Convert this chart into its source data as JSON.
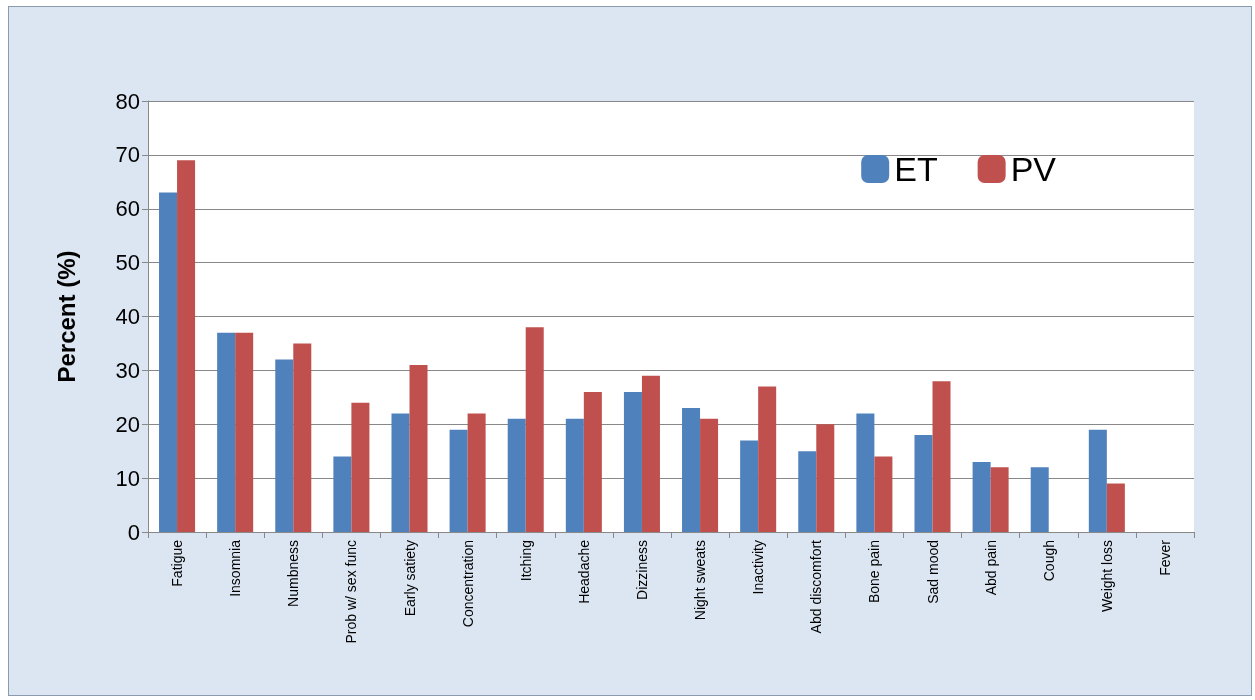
{
  "chart_data": {
    "type": "bar",
    "ylabel": "Percent (%)",
    "categories": [
      "Fatigue",
      "Insomnia",
      "Numbness",
      "Prob w/ sex func",
      "Early satiety",
      "Concentration",
      "Itching",
      "Headache",
      "Dizziness",
      "Night sweats",
      "Inactivity",
      "Abd discomfort",
      "Bone pain",
      "Sad mood",
      "Abd pain",
      "Cough",
      "Weight loss",
      "Fever"
    ],
    "series": [
      {
        "name": "ET",
        "color": "#4f81bd",
        "values": [
          63,
          37,
          32,
          14,
          22,
          19,
          21,
          21,
          26,
          23,
          17,
          15,
          22,
          18,
          13,
          12,
          19,
          0
        ]
      },
      {
        "name": "PV",
        "color": "#c0504d",
        "values": [
          69,
          37,
          35,
          24,
          31,
          22,
          38,
          26,
          29,
          21,
          27,
          20,
          14,
          28,
          12,
          0,
          9,
          0
        ]
      }
    ],
    "ylim": [
      0,
      80
    ],
    "yticks": [
      0,
      10,
      20,
      30,
      40,
      50,
      60,
      70,
      80
    ],
    "grid": "y",
    "legend": "top right"
  }
}
